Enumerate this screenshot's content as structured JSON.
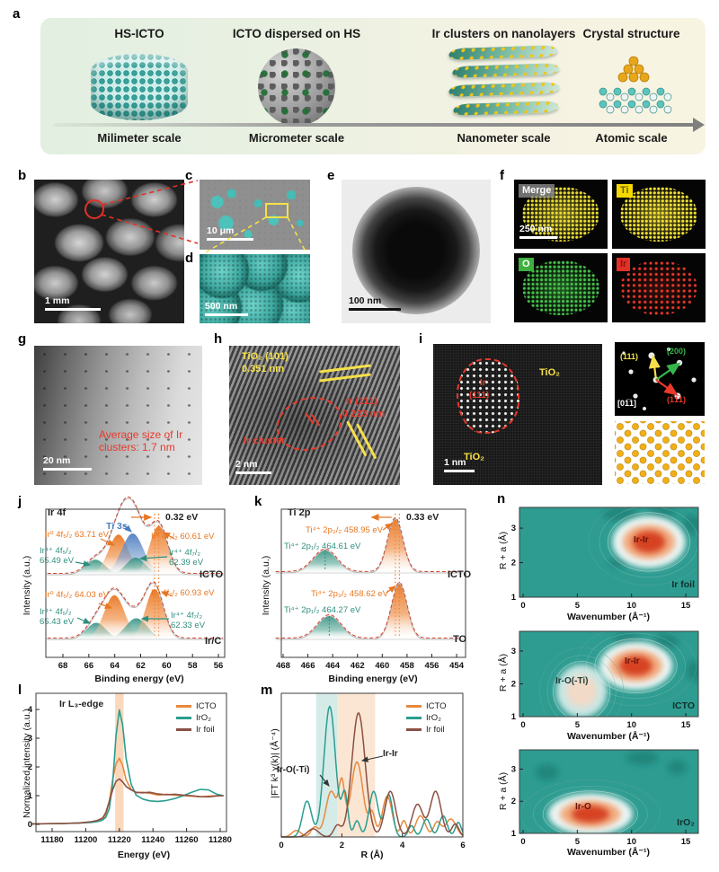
{
  "panels": {
    "a": {
      "label": "a",
      "steps": [
        {
          "title": "HS-ICTO",
          "scale_label": "Milimeter scale"
        },
        {
          "title": "ICTO dispersed on HS",
          "scale_label": "Micrometer scale"
        },
        {
          "title": "Ir clusters on nanolayers",
          "scale_label": "Nanometer scale"
        },
        {
          "title": "Crystal structure",
          "scale_label": "Atomic scale"
        }
      ]
    },
    "b": {
      "label": "b",
      "scalebar": "1 mm"
    },
    "c": {
      "label": "c",
      "scalebar": "10 μm"
    },
    "d": {
      "label": "d",
      "scalebar": "500 nm"
    },
    "e": {
      "label": "e",
      "scalebar": "100 nm"
    },
    "f": {
      "label": "f",
      "scalebar": "250 nm",
      "maps": [
        {
          "name": "Merge",
          "chip_bg": "rgba(130,130,130,0.85)",
          "chip_text": "#ffffff",
          "dot_color": "#e9dc35",
          "glow": 0.5,
          "dot_gap": 4.5
        },
        {
          "name": "Ti",
          "chip_bg": "#f5d800",
          "chip_text": "#6b6200",
          "dot_color": "#f2e136",
          "glow": 0.5,
          "dot_gap": 4.5
        },
        {
          "name": "O",
          "chip_bg": "#3faf3f",
          "chip_text": "#ffffff",
          "dot_color": "#46c24a",
          "glow": 0.45,
          "dot_gap": 4.8
        },
        {
          "name": "Ir",
          "chip_bg": "#e23127",
          "chip_text": "#8f1410",
          "dot_color": "#e8392b",
          "glow": 0.2,
          "dot_gap": 6.2
        }
      ]
    },
    "g": {
      "label": "g",
      "scalebar": "20 nm",
      "annotation": "Average size of Ir clusters: 1.7 nm",
      "annotation_color": "#e8392b"
    },
    "h": {
      "label": "h",
      "scalebar": "2 nm",
      "lattice1_plane": "TiO₂ (101)",
      "lattice1_d": "0.351 nm",
      "lattice2_plane": "Ir (111)",
      "lattice2_d": "0.223 nm",
      "cluster_label": "Ir cluster"
    },
    "i": {
      "label": "i",
      "scalebar": "1 nm",
      "core_element": "Ir",
      "core_plane": "(111)",
      "matrix_top": "TiO₂",
      "matrix_bottom": "TiO₂",
      "fft": {
        "plane_111": "(111)",
        "plane_200": "(200)",
        "plane_111bar": "(1̅1̅1)",
        "zone_axis": "[01̅1]",
        "color_111": "#f5e04a",
        "color_200": "#35b54a",
        "color_111bar": "#e8392b"
      }
    }
  },
  "chart_data": {
    "j": {
      "type": "line",
      "panel_label": "j",
      "title": "Ir 4f",
      "xlabel": "Binding energy (eV)",
      "ylabel": "Intensity (a.u.)",
      "x_ticks": [
        68,
        66,
        64,
        62,
        60,
        58,
        56
      ],
      "x_axis_reversed": true,
      "shift": {
        "value_label": "0.32 eV",
        "from_ev": 60.93,
        "to_ev": 60.61
      },
      "colors": {
        "ir0": "#E87722",
        "ir4": "#2F8F7E",
        "ti3s": "#4D7EC0",
        "fit": "#D0442E"
      },
      "spectra": [
        {
          "name": "ICTO",
          "peaks": [
            {
              "species": "Ir⁴⁺ 4f₅/₂",
              "energy": "65.49 eV",
              "center": 65.49,
              "sigma": 0.75,
              "height": 0.3,
              "color": "ir4"
            },
            {
              "species": "Ir⁰ 4f₅/₂",
              "energy": "63.71 eV",
              "center": 63.71,
              "sigma": 0.78,
              "height": 0.8,
              "color": "ir0"
            },
            {
              "species": "Ti 3s",
              "energy": "",
              "center": 62.62,
              "sigma": 0.85,
              "height": 0.82,
              "color": "ti3s"
            },
            {
              "species": "Ir⁴⁺ 4f₇/₂",
              "energy": "62.39 eV",
              "center": 62.39,
              "sigma": 0.75,
              "height": 0.34,
              "color": "ir4"
            },
            {
              "species": "Ir⁰ 4f₇/₂",
              "energy": "60.61 eV",
              "center": 60.61,
              "sigma": 0.7,
              "height": 0.97,
              "color": "ir0"
            }
          ]
        },
        {
          "name": "Ir/C",
          "peaks": [
            {
              "species": "Ir⁴⁺ 4f₅/₂",
              "energy": "65.43 eV",
              "center": 65.43,
              "sigma": 0.75,
              "height": 0.33,
              "color": "ir4"
            },
            {
              "species": "Ir⁰ 4f₅/₂",
              "energy": "64.03 eV",
              "center": 64.03,
              "sigma": 0.8,
              "height": 0.88,
              "color": "ir0"
            },
            {
              "species": "Ir⁴⁺ 4f₇/₂",
              "energy": "62.33 eV",
              "center": 62.33,
              "sigma": 0.85,
              "height": 0.42,
              "color": "ir4"
            },
            {
              "species": "Ir⁰ 4f₇/₂",
              "energy": "60.93 eV",
              "center": 60.93,
              "sigma": 0.7,
              "height": 1.0,
              "color": "ir0"
            }
          ]
        }
      ]
    },
    "k": {
      "type": "line",
      "panel_label": "k",
      "title": "Ti 2p",
      "xlabel": "Binding energy (eV)",
      "ylabel": "Intensity (a.u.)",
      "x_ticks": [
        468,
        466,
        464,
        462,
        460,
        458,
        456,
        454
      ],
      "x_axis_reversed": true,
      "shift": {
        "value_label": "0.33 eV",
        "from_ev": 458.95,
        "to_ev": 458.62
      },
      "colors": {
        "ir0": "#E87722",
        "ir4": "#2F8F7E",
        "fit": "#D0442E"
      },
      "spectra": [
        {
          "name": "ICTO",
          "peaks": [
            {
              "species": "Ti⁴⁺ 2p₃/₂",
              "energy": "458.95 eV",
              "center": 458.95,
              "sigma": 0.62,
              "height": 1.0,
              "color": "ir0"
            },
            {
              "species": "Ti⁴⁺ 2p₁/₂",
              "energy": "464.61 eV",
              "center": 464.61,
              "sigma": 0.95,
              "height": 0.42,
              "color": "ir4"
            }
          ]
        },
        {
          "name": "TO",
          "peaks": [
            {
              "species": "Ti⁴⁺ 2p₃/₂",
              "energy": "458.62 eV",
              "center": 458.62,
              "sigma": 0.62,
              "height": 1.0,
              "color": "ir0"
            },
            {
              "species": "Ti⁴⁺ 2p₁/₂",
              "energy": "464.27 eV",
              "center": 464.27,
              "sigma": 0.95,
              "height": 0.42,
              "color": "ir4"
            }
          ]
        }
      ]
    },
    "l": {
      "type": "line",
      "panel_label": "l",
      "title": "Ir L₃-edge",
      "xlabel": "Energy (eV)",
      "ylabel": "Normalized intensity (a.u.)",
      "x_ticks": [
        11180,
        11200,
        11220,
        11240,
        11260,
        11280
      ],
      "y_ticks": [
        0,
        1,
        2,
        3,
        4
      ],
      "highlight_band_ev": [
        11217.5,
        11222.5
      ],
      "highlight_color": "#F4B178",
      "series": [
        {
          "name": "ICTO",
          "color": "#E8893C",
          "x": [
            11168,
            11186,
            11196,
            11203,
            11207,
            11210,
            11212,
            11214,
            11216,
            11218,
            11220,
            11222,
            11224,
            11227,
            11230,
            11234,
            11238,
            11243,
            11248,
            11253,
            11258,
            11263,
            11268,
            11273,
            11278,
            11282
          ],
          "y": [
            0.02,
            0.03,
            0.05,
            0.08,
            0.12,
            0.18,
            0.35,
            0.8,
            1.55,
            2.12,
            2.3,
            2.05,
            1.55,
            1.22,
            1.1,
            1.12,
            1.08,
            1.02,
            1.05,
            1.02,
            1.0,
            0.98,
            0.96,
            0.98,
            1.0,
            1.0
          ]
        },
        {
          "name": "IrO₂",
          "color": "#2A9D8F",
          "x": [
            11168,
            11186,
            11196,
            11203,
            11207,
            11210,
            11212,
            11214,
            11216,
            11218,
            11220,
            11222,
            11224,
            11227,
            11230,
            11234,
            11238,
            11243,
            11248,
            11253,
            11258,
            11263,
            11268,
            11273,
            11278,
            11282
          ],
          "y": [
            0.02,
            0.03,
            0.05,
            0.07,
            0.1,
            0.15,
            0.25,
            0.55,
            1.4,
            3.1,
            3.98,
            3.45,
            2.3,
            1.4,
            1.02,
            0.88,
            0.82,
            0.8,
            0.83,
            0.9,
            1.0,
            1.12,
            1.22,
            1.2,
            1.05,
            1.0
          ]
        },
        {
          "name": "Ir foil",
          "color": "#8B5044",
          "x": [
            11168,
            11186,
            11196,
            11203,
            11207,
            11210,
            11212,
            11214,
            11216,
            11218,
            11220,
            11222,
            11224,
            11227,
            11230,
            11234,
            11238,
            11243,
            11248,
            11253,
            11258,
            11263,
            11268,
            11273,
            11278,
            11282
          ],
          "y": [
            0.02,
            0.03,
            0.05,
            0.09,
            0.14,
            0.22,
            0.42,
            0.8,
            1.2,
            1.5,
            1.58,
            1.48,
            1.32,
            1.2,
            1.12,
            1.1,
            1.12,
            1.06,
            1.03,
            1.05,
            1.02,
            1.0,
            0.97,
            0.96,
            0.99,
            1.0
          ]
        }
      ]
    },
    "m": {
      "type": "line",
      "panel_label": "m",
      "xlabel": "R (Å)",
      "ylabel": "|FT k³ χ(k)| (Å⁻⁴)",
      "x_ticks": [
        0,
        2,
        4,
        6
      ],
      "bands": [
        {
          "r_range": [
            1.15,
            1.85
          ],
          "color": "#BFE0DB"
        },
        {
          "r_range": [
            1.85,
            3.1
          ],
          "color": "#F7D9BC"
        }
      ],
      "annotations": [
        {
          "text": "Ir-O(-Ti)"
        },
        {
          "text": "Ir-Ir"
        }
      ],
      "series": [
        {
          "name": "ICTO",
          "color": "#E8893C",
          "peaks": [
            [
              0.5,
              0.15,
              0.04
            ],
            [
              1.1,
              0.12,
              0.06
            ],
            [
              1.65,
              0.18,
              0.28
            ],
            [
              2.0,
              0.1,
              0.3
            ],
            [
              2.5,
              0.2,
              0.46
            ],
            [
              3.0,
              0.1,
              0.14
            ],
            [
              3.5,
              0.16,
              0.25
            ],
            [
              4.05,
              0.1,
              0.1
            ],
            [
              4.6,
              0.16,
              0.13
            ],
            [
              5.15,
              0.12,
              0.09
            ],
            [
              5.6,
              0.18,
              0.11
            ]
          ]
        },
        {
          "name": "IrO₂",
          "color": "#2A9D8F",
          "peaks": [
            [
              0.85,
              0.15,
              0.22
            ],
            [
              1.6,
              0.19,
              0.8
            ],
            [
              2.1,
              0.1,
              0.26
            ],
            [
              2.5,
              0.1,
              0.1
            ],
            [
              3.05,
              0.15,
              0.28
            ],
            [
              3.55,
              0.13,
              0.26
            ],
            [
              4.3,
              0.1,
              0.07
            ],
            [
              4.8,
              0.13,
              0.11
            ],
            [
              5.35,
              0.13,
              0.13
            ],
            [
              5.85,
              0.1,
              0.09
            ]
          ]
        },
        {
          "name": "Ir foil",
          "color": "#8B5044",
          "peaks": [
            [
              1.05,
              0.18,
              0.05
            ],
            [
              1.85,
              0.12,
              0.07
            ],
            [
              2.55,
              0.22,
              0.76
            ],
            [
              3.6,
              0.18,
              0.28
            ],
            [
              4.5,
              0.18,
              0.2
            ],
            [
              5.1,
              0.18,
              0.28
            ],
            [
              5.75,
              0.12,
              0.08
            ]
          ]
        }
      ]
    },
    "n": {
      "type": "heatmap",
      "panel_label": "n",
      "xlabel": "Wavenumber (Å⁻¹)",
      "ylabel": "R + a (Å)",
      "x_ticks": [
        0,
        5,
        10,
        15
      ],
      "y_ticks": [
        1,
        2,
        3
      ],
      "x_range": [
        0,
        16.2
      ],
      "y_range": [
        1,
        3.6
      ],
      "background_color": "#2E9C91",
      "hot_color": "#D64323",
      "plots": [
        {
          "sample": "Ir foil",
          "blobs": [
            {
              "label": "Ir-Ir",
              "label_color": "#6b1408",
              "k": 11.6,
              "r": 2.6,
              "k_sigma": 2.6,
              "r_sigma": 0.33,
              "intensity": 1.0
            }
          ]
        },
        {
          "sample": "ICTO",
          "blobs": [
            {
              "label": "Ir-Ir",
              "label_color": "#6b1408",
              "k": 10.4,
              "r": 2.55,
              "k_sigma": 2.6,
              "r_sigma": 0.32,
              "intensity": 1.0
            },
            {
              "label": "Ir-O(-Ti)",
              "label_color": "#1d3b36",
              "k": 5.4,
              "r": 1.78,
              "k_sigma": 1.8,
              "r_sigma": 0.35,
              "intensity": 0.45
            }
          ]
        },
        {
          "sample": "IrO₂",
          "blobs": [
            {
              "label": "Ir-O",
              "label_color": "#6b1408",
              "k": 6.2,
              "r": 1.6,
              "k_sigma": 3.0,
              "r_sigma": 0.28,
              "intensity": 1.0
            }
          ]
        }
      ]
    }
  }
}
